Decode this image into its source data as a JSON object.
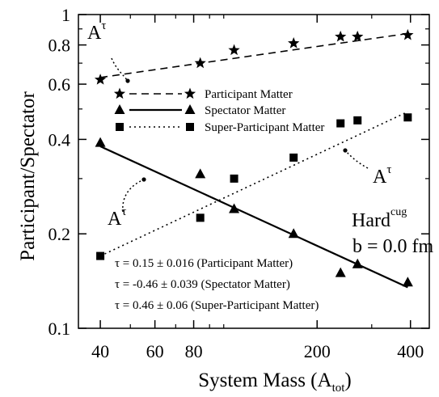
{
  "chart_data": {
    "type": "scatter",
    "xlabel": "System Mass (A",
    "xlabel_sub": "tot",
    "xlabel_close": ")",
    "ylabel": "Participant/Spectator",
    "xscale": "log",
    "yscale": "log",
    "xlim": [
      34,
      460
    ],
    "ylim": [
      0.1,
      1
    ],
    "xticks": [
      {
        "value": 40,
        "label": "40"
      },
      {
        "value": 60,
        "label": "60"
      },
      {
        "value": 80,
        "label": "80"
      },
      {
        "value": 200,
        "label": "200"
      },
      {
        "value": 400,
        "label": "400"
      }
    ],
    "yticks": [
      {
        "value": 0.1,
        "label": "0.1"
      },
      {
        "value": 0.2,
        "label": "0.2"
      },
      {
        "value": 0.4,
        "label": "0.4"
      },
      {
        "value": 0.6,
        "label": "0.6"
      },
      {
        "value": 0.8,
        "label": "0.8"
      },
      {
        "value": 1,
        "label": "1"
      }
    ],
    "series": [
      {
        "name": "Participant Matter",
        "marker": "star",
        "line": "dashed",
        "x": [
          40,
          84,
          108,
          168,
          238,
          270,
          392
        ],
        "y": [
          0.62,
          0.7,
          0.77,
          0.81,
          0.85,
          0.85,
          0.86
        ],
        "fit": {
          "x": [
            40,
            392
          ],
          "y": [
            0.63,
            0.87
          ]
        }
      },
      {
        "name": "Spectator Matter",
        "marker": "triangle",
        "line": "solid",
        "x": [
          40,
          84,
          108,
          168,
          238,
          270,
          392
        ],
        "y": [
          0.39,
          0.31,
          0.24,
          0.2,
          0.15,
          0.16,
          0.14
        ],
        "fit": {
          "x": [
            40,
            392
          ],
          "y": [
            0.38,
            0.135
          ]
        }
      },
      {
        "name": "Super-Participant Matter",
        "marker": "square",
        "line": "dotted",
        "x": [
          40,
          84,
          108,
          168,
          238,
          270,
          392
        ],
        "y": [
          0.17,
          0.225,
          0.3,
          0.35,
          0.45,
          0.46,
          0.47
        ],
        "fit": {
          "x": [
            40,
            392
          ],
          "y": [
            0.17,
            0.49
          ]
        }
      }
    ],
    "annotations": [
      {
        "base": "A",
        "sup": "τ"
      },
      {
        "base": "A",
        "sup": "τ"
      },
      {
        "base": "A",
        "sup": "τ"
      }
    ],
    "system_label": {
      "base": "Hard",
      "sup": "cug"
    },
    "impact_label": "b = 0.0 fm",
    "fit_texts": [
      "τ = 0.15 ± 0.016 (Participant Matter)",
      "τ = -0.46 ± 0.039 (Spectator Matter)",
      "τ = 0.46 ± 0.06 (Super-Participant Matter)"
    ]
  }
}
